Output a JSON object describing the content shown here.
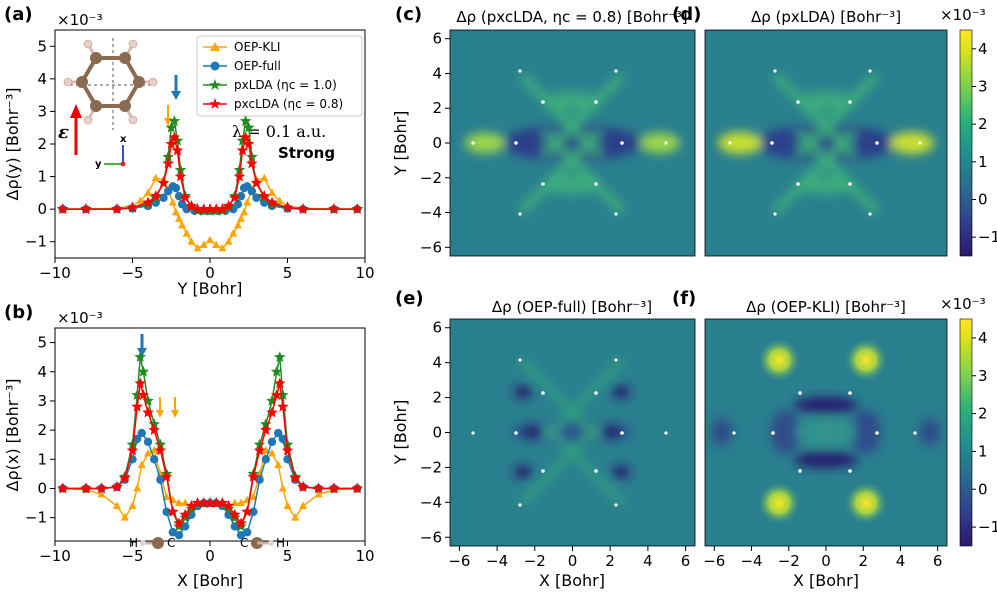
{
  "figure": {
    "panels": {
      "a": "(a)",
      "b": "(b)",
      "c": "(c)",
      "d": "(d)",
      "e": "(e)",
      "f": "(f)"
    },
    "annotation_lambda": "λ = 0.1 a.u.",
    "annotation_strength": "Strong",
    "mol_labels": {
      "epsilon": "ε",
      "axis_x": "x",
      "axis_y": "y",
      "H": "H",
      "C": "C"
    }
  },
  "chart_data": [
    {
      "id": "a",
      "type": "line",
      "title": "",
      "xlabel": "Y [Bohr]",
      "ylabel": "Δρ(y) [Bohr⁻³]",
      "offset_text": "×10⁻³",
      "xlim": [
        -10,
        10
      ],
      "ylim": [
        -1.5,
        5.5
      ],
      "xticks": [
        -10,
        -5,
        0,
        5,
        10
      ],
      "xticklabels": [
        "−10",
        "−5",
        "0",
        "5",
        "10"
      ],
      "yticks": [
        -1,
        0,
        1,
        2,
        3,
        4,
        5
      ],
      "yticklabels": [
        "−1",
        "0",
        "1",
        "2",
        "3",
        "4",
        "5"
      ],
      "legend": [
        "OEP-KLI",
        "OEP-full",
        "pxLDA (ηc = 1.0)",
        "pxcLDA (ηc = 0.8)"
      ],
      "series": [
        {
          "name": "OEP-KLI",
          "color": "#FFA500",
          "marker": "triangle",
          "x": [
            -9.5,
            -8,
            -6,
            -5,
            -4.5,
            -4,
            -3.5,
            -3,
            -2.7,
            -2.4,
            -2.2,
            -2,
            -1.8,
            -1.5,
            -1.2,
            -0.8,
            -0.4,
            0,
            0.4,
            0.8,
            1.2,
            1.5,
            1.8,
            2,
            2.2,
            2.4,
            2.7,
            3,
            3.5,
            4,
            4.5,
            5,
            6,
            8,
            9.5
          ],
          "y": [
            0,
            0,
            0.03,
            0.1,
            0.25,
            0.5,
            0.95,
            0.9,
            0.6,
            0.2,
            -0.1,
            -0.3,
            -0.5,
            -0.75,
            -1,
            -1.2,
            -1.1,
            -0.95,
            -1.1,
            -1.2,
            -1,
            -0.75,
            -0.5,
            -0.3,
            -0.1,
            0.2,
            0.6,
            0.9,
            0.95,
            0.5,
            0.25,
            0.1,
            0.03,
            0,
            0
          ]
        },
        {
          "name": "OEP-full",
          "color": "#1F77B4",
          "marker": "circle",
          "x": [
            -9.5,
            -8,
            -6,
            -5,
            -4,
            -3.5,
            -3,
            -2.7,
            -2.4,
            -2.2,
            -2,
            -1.8,
            -1.5,
            -1,
            -0.5,
            0,
            0.5,
            1,
            1.5,
            1.8,
            2,
            2.2,
            2.4,
            2.7,
            3,
            3.5,
            4,
            5,
            6,
            8,
            9.5
          ],
          "y": [
            0,
            0,
            0,
            0.02,
            0.1,
            0.2,
            0.35,
            0.55,
            0.7,
            0.65,
            0.4,
            0.15,
            0,
            -0.05,
            -0.05,
            -0.05,
            -0.05,
            -0.05,
            0,
            0.15,
            0.4,
            0.65,
            0.7,
            0.55,
            0.35,
            0.2,
            0.1,
            0.02,
            0,
            0,
            0
          ]
        },
        {
          "name": "pxLDA (ηc = 1.0)",
          "color": "#228B22",
          "marker": "star",
          "x": [
            -9.5,
            -8,
            -6,
            -5,
            -4,
            -3.5,
            -3,
            -2.7,
            -2.5,
            -2.3,
            -2.1,
            -1.9,
            -1.6,
            -1.2,
            -0.8,
            -0.4,
            0,
            0.4,
            0.8,
            1.2,
            1.6,
            1.9,
            2.1,
            2.3,
            2.5,
            2.7,
            3,
            3.5,
            4,
            5,
            6,
            8,
            9.5
          ],
          "y": [
            0,
            0,
            0,
            0.05,
            0.15,
            0.35,
            0.8,
            1.6,
            2.5,
            2.7,
            2.1,
            1.2,
            0.4,
            0.05,
            -0.05,
            -0.05,
            -0.05,
            -0.05,
            -0.05,
            0.05,
            0.4,
            1.2,
            2.1,
            2.7,
            2.5,
            1.6,
            0.8,
            0.35,
            0.15,
            0.05,
            0,
            0,
            0
          ]
        },
        {
          "name": "pxcLDA (ηc = 0.8)",
          "color": "#FF0000",
          "marker": "star",
          "x": [
            -9.5,
            -8,
            -6,
            -5,
            -4,
            -3.5,
            -3,
            -2.7,
            -2.5,
            -2.3,
            -2.1,
            -1.9,
            -1.6,
            -1.2,
            -0.8,
            -0.4,
            0,
            0.4,
            0.8,
            1.2,
            1.6,
            1.9,
            2.1,
            2.3,
            2.5,
            2.7,
            3,
            3.5,
            4,
            5,
            6,
            8,
            9.5
          ],
          "y": [
            0,
            0,
            0,
            0.05,
            0.2,
            0.4,
            0.8,
            1.4,
            2.0,
            2.2,
            1.8,
            1.0,
            0.35,
            0.1,
            0,
            0,
            0,
            0,
            0,
            0.1,
            0.35,
            1.0,
            1.8,
            2.2,
            2.0,
            1.4,
            0.8,
            0.4,
            0.2,
            0.05,
            0,
            0,
            0
          ]
        }
      ]
    },
    {
      "id": "b",
      "type": "line",
      "title": "",
      "xlabel": "X [Bohr]",
      "ylabel": "Δρ(x) [Bohr⁻³]",
      "offset_text": "×10⁻³",
      "xlim": [
        -10,
        10
      ],
      "ylim": [
        -1.8,
        5.5
      ],
      "xticks": [
        -10,
        -5,
        0,
        5,
        10
      ],
      "xticklabels": [
        "−10",
        "−5",
        "0",
        "5",
        "10"
      ],
      "yticks": [
        -1,
        0,
        1,
        2,
        3,
        4,
        5
      ],
      "yticklabels": [
        "−1",
        "0",
        "1",
        "2",
        "3",
        "4",
        "5"
      ],
      "series": [
        {
          "name": "OEP-KLI",
          "color": "#FFA500",
          "marker": "triangle",
          "x": [
            -9.5,
            -8,
            -7,
            -6,
            -5.5,
            -5,
            -4.7,
            -4.4,
            -4,
            -3.6,
            -3.2,
            -2.8,
            -2.4,
            -2,
            -1.6,
            -1.2,
            -0.8,
            -0.4,
            0,
            0.4,
            0.8,
            1.2,
            1.6,
            2,
            2.4,
            2.8,
            3.2,
            3.6,
            4,
            4.4,
            4.7,
            5,
            5.5,
            6,
            7,
            8,
            9.5
          ],
          "y": [
            0,
            -0.05,
            -0.2,
            -0.6,
            -1.0,
            -0.6,
            0,
            0.8,
            1.2,
            1.3,
            0.5,
            -0.3,
            -0.4,
            -0.5,
            -0.5,
            -0.6,
            -0.55,
            -0.5,
            -0.5,
            -0.5,
            -0.55,
            -0.6,
            -0.5,
            -0.5,
            -0.4,
            -0.3,
            0.5,
            1.3,
            1.2,
            0.8,
            0,
            -0.6,
            -1.0,
            -0.6,
            -0.2,
            -0.05,
            0
          ]
        },
        {
          "name": "OEP-full",
          "color": "#1F77B4",
          "marker": "circle",
          "x": [
            -9.5,
            -8,
            -7,
            -6,
            -5.5,
            -5,
            -4.7,
            -4.4,
            -4,
            -3.6,
            -3.2,
            -2.8,
            -2.4,
            -2,
            -1.6,
            -1.2,
            -0.8,
            -0.4,
            0,
            0.4,
            0.8,
            1.2,
            1.6,
            2,
            2.4,
            2.8,
            3.2,
            3.6,
            4,
            4.4,
            4.7,
            5,
            5.5,
            6,
            7,
            8,
            9.5
          ],
          "y": [
            0,
            0,
            0,
            0.05,
            0.3,
            1.0,
            1.7,
            1.9,
            1.6,
            1.0,
            0.3,
            -0.8,
            -1.5,
            -1.6,
            -1.3,
            -0.9,
            -0.6,
            -0.5,
            -0.5,
            -0.5,
            -0.6,
            -0.9,
            -1.3,
            -1.6,
            -1.5,
            -0.8,
            0.3,
            1.0,
            1.6,
            1.9,
            1.7,
            1.0,
            0.3,
            0.05,
            0,
            0,
            0
          ]
        },
        {
          "name": "pxLDA (ηc = 1.0)",
          "color": "#228B22",
          "marker": "star",
          "x": [
            -9.5,
            -8,
            -7,
            -6,
            -5.5,
            -5,
            -4.7,
            -4.5,
            -4.3,
            -4,
            -3.6,
            -3.2,
            -2.8,
            -2.4,
            -2,
            -1.6,
            -1.2,
            -0.8,
            -0.4,
            0,
            0.4,
            0.8,
            1.2,
            1.6,
            2,
            2.4,
            2.8,
            3.2,
            3.6,
            4,
            4.3,
            4.5,
            4.7,
            5,
            5.5,
            6,
            7,
            8,
            9.5
          ],
          "y": [
            0,
            0,
            0,
            0.05,
            0.4,
            1.5,
            3.2,
            4.5,
            4.0,
            3.0,
            2.2,
            1.5,
            0.5,
            -0.8,
            -1.3,
            -1.0,
            -0.7,
            -0.5,
            -0.5,
            -0.5,
            -0.5,
            -0.5,
            -0.7,
            -1.0,
            -1.3,
            -0.8,
            0.5,
            1.5,
            2.2,
            3.0,
            4.0,
            4.5,
            3.2,
            1.5,
            0.4,
            0.05,
            0,
            0,
            0
          ]
        },
        {
          "name": "pxcLDA (ηc = 0.8)",
          "color": "#FF0000",
          "marker": "star",
          "x": [
            -9.5,
            -8,
            -7,
            -6,
            -5.5,
            -5,
            -4.7,
            -4.5,
            -4.3,
            -4,
            -3.6,
            -3.2,
            -2.8,
            -2.4,
            -2,
            -1.6,
            -1.2,
            -0.8,
            -0.4,
            0,
            0.4,
            0.8,
            1.2,
            1.6,
            2,
            2.4,
            2.8,
            3.2,
            3.6,
            4,
            4.3,
            4.5,
            4.7,
            5,
            5.5,
            6,
            7,
            8,
            9.5
          ],
          "y": [
            0,
            0,
            0,
            0.05,
            0.35,
            1.3,
            2.8,
            3.6,
            3.2,
            2.6,
            2.0,
            1.3,
            0.4,
            -0.8,
            -1.2,
            -0.9,
            -0.6,
            -0.5,
            -0.5,
            -0.5,
            -0.5,
            -0.5,
            -0.6,
            -0.9,
            -1.2,
            -0.8,
            0.4,
            1.3,
            2.0,
            2.6,
            3.2,
            3.6,
            2.8,
            1.3,
            0.35,
            0.05,
            0,
            0,
            0
          ]
        }
      ]
    },
    {
      "id": "c",
      "type": "heatmap",
      "title": "Δρ (pxcLDA, ηc = 0.8) [Bohr⁻³]",
      "xlabel": "",
      "ylabel": "Y [Bohr]",
      "xlim": [
        -6.5,
        6.5
      ],
      "ylim": [
        -6.5,
        6.5
      ],
      "xticks": [],
      "xticklabels": [],
      "yticks": [
        -6,
        -4,
        -2,
        0,
        2,
        4,
        6
      ],
      "yticklabels": [
        "−6",
        "−4",
        "−2",
        "0",
        "2",
        "4",
        "6"
      ]
    },
    {
      "id": "d",
      "type": "heatmap",
      "title": "Δρ (pxLDA) [Bohr⁻³]",
      "xlabel": "",
      "ylabel": "",
      "xlim": [
        -6.5,
        6.5
      ],
      "ylim": [
        -6.5,
        6.5
      ],
      "colorbar": {
        "offset_text": "×10⁻³",
        "ticks": [
          -1,
          0,
          1,
          2,
          3,
          4
        ],
        "ticklabels": [
          "−1",
          "0",
          "1",
          "2",
          "3",
          "4"
        ],
        "range": [
          -1.5,
          4.5
        ]
      }
    },
    {
      "id": "e",
      "type": "heatmap",
      "title": "Δρ (OEP-full) [Bohr⁻³]",
      "xlabel": "X [Bohr]",
      "ylabel": "Y [Bohr]",
      "xlim": [
        -6.5,
        6.5
      ],
      "ylim": [
        -6.5,
        6.5
      ],
      "xticks": [
        -6,
        -4,
        -2,
        0,
        2,
        4,
        6
      ],
      "xticklabels": [
        "−6",
        "−4",
        "−2",
        "0",
        "2",
        "4",
        "6"
      ],
      "yticks": [
        -6,
        -4,
        -2,
        0,
        2,
        4,
        6
      ],
      "yticklabels": [
        "−6",
        "−4",
        "−2",
        "0",
        "2",
        "4",
        "6"
      ]
    },
    {
      "id": "f",
      "type": "heatmap",
      "title": "Δρ (OEP-KLI) [Bohr⁻³]",
      "xlabel": "X [Bohr]",
      "ylabel": "",
      "xlim": [
        -6.5,
        6.5
      ],
      "ylim": [
        -6.5,
        6.5
      ],
      "xticks": [
        -6,
        -4,
        -2,
        0,
        2,
        4,
        6
      ],
      "xticklabels": [
        "−6",
        "−4",
        "−2",
        "0",
        "2",
        "4",
        "6"
      ],
      "colorbar": {
        "offset_text": "×10⁻³",
        "ticks": [
          -1,
          0,
          1,
          2,
          3,
          4
        ],
        "ticklabels": [
          "−1",
          "0",
          "1",
          "2",
          "3",
          "4"
        ],
        "range": [
          -1.5,
          4.5
        ]
      }
    }
  ]
}
